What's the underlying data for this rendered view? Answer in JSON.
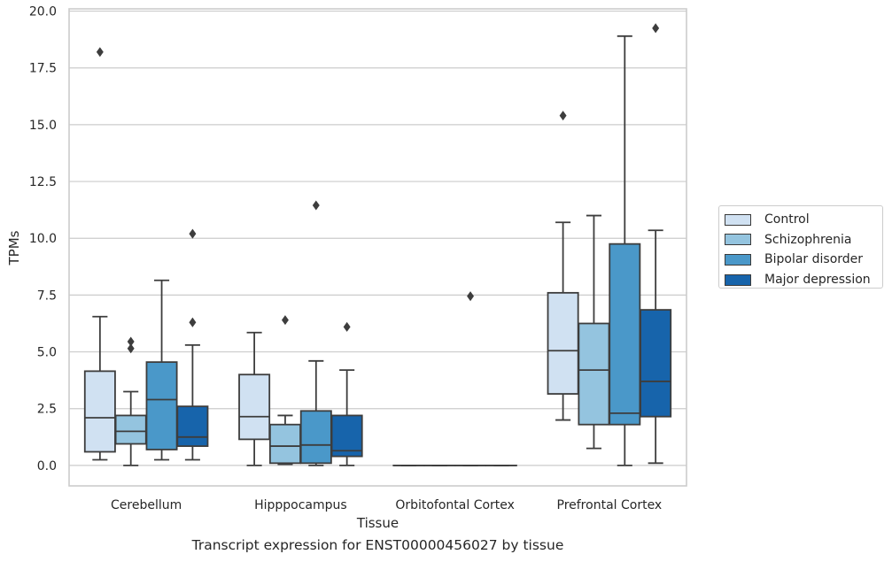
{
  "chart_data": {
    "type": "box",
    "xlabel": "Tissue",
    "ylabel": "TPMs",
    "caption": "Transcript expression for ENST00000456027 by tissue",
    "ylim": [
      -0.9,
      20.1
    ],
    "yticks": [
      "0.0",
      "2.5",
      "5.0",
      "7.5",
      "10.0",
      "12.5",
      "15.0",
      "17.5",
      "20.0"
    ],
    "grid": "horizontal",
    "legend_position": "right",
    "categories": [
      "Cerebellum",
      "Hipppocampus",
      "Orbitofontal Cortex",
      "Prefrontal Cortex"
    ],
    "series": [
      {
        "name": "Control",
        "color": "#d0e1f2",
        "boxes": [
          {
            "whislo": 0.25,
            "q1": 0.6,
            "med": 2.1,
            "q3": 4.15,
            "whishi": 6.55,
            "fliers": [
              18.2
            ]
          },
          {
            "whislo": 0.0,
            "q1": 1.15,
            "med": 2.15,
            "q3": 4.0,
            "whishi": 5.85,
            "fliers": []
          },
          {
            "whislo": 0.0,
            "q1": 0.0,
            "med": 0.0,
            "q3": 0.0,
            "whishi": 0.0,
            "fliers": []
          },
          {
            "whislo": 2.0,
            "q1": 3.15,
            "med": 5.05,
            "q3": 7.6,
            "whishi": 10.7,
            "fliers": [
              15.4
            ]
          }
        ]
      },
      {
        "name": "Schizophrenia",
        "color": "#94c4df",
        "boxes": [
          {
            "whislo": 0.0,
            "q1": 0.95,
            "med": 1.5,
            "q3": 2.2,
            "whishi": 3.25,
            "fliers": [
              5.15,
              5.45
            ]
          },
          {
            "whislo": 0.05,
            "q1": 0.1,
            "med": 0.85,
            "q3": 1.8,
            "whishi": 2.2,
            "fliers": [
              6.4
            ]
          },
          {
            "whislo": 0.0,
            "q1": 0.0,
            "med": 0.0,
            "q3": 0.0,
            "whishi": 0.0,
            "fliers": []
          },
          {
            "whislo": 0.75,
            "q1": 1.8,
            "med": 4.2,
            "q3": 6.25,
            "whishi": 11.0,
            "fliers": []
          }
        ]
      },
      {
        "name": "Bipolar disorder",
        "color": "#4a98c9",
        "boxes": [
          {
            "whislo": 0.25,
            "q1": 0.7,
            "med": 2.9,
            "q3": 4.55,
            "whishi": 8.15,
            "fliers": []
          },
          {
            "whislo": 0.0,
            "q1": 0.1,
            "med": 0.9,
            "q3": 2.4,
            "whishi": 4.6,
            "fliers": [
              11.45
            ]
          },
          {
            "whislo": 0.0,
            "q1": 0.0,
            "med": 0.0,
            "q3": 0.0,
            "whishi": 0.0,
            "fliers": [
              7.45
            ]
          },
          {
            "whislo": 0.0,
            "q1": 1.8,
            "med": 2.3,
            "q3": 9.75,
            "whishi": 18.9,
            "fliers": []
          }
        ]
      },
      {
        "name": "Major depression",
        "color": "#1764ab",
        "boxes": [
          {
            "whislo": 0.25,
            "q1": 0.85,
            "med": 1.25,
            "q3": 2.6,
            "whishi": 5.3,
            "fliers": [
              6.3,
              10.2
            ]
          },
          {
            "whislo": 0.0,
            "q1": 0.4,
            "med": 0.65,
            "q3": 2.2,
            "whishi": 4.2,
            "fliers": [
              6.1
            ]
          },
          {
            "whislo": 0.0,
            "q1": 0.0,
            "med": 0.0,
            "q3": 0.0,
            "whishi": 0.0,
            "fliers": []
          },
          {
            "whislo": 0.1,
            "q1": 2.15,
            "med": 3.7,
            "q3": 6.85,
            "whishi": 10.35,
            "fliers": [
              19.25
            ]
          }
        ]
      }
    ]
  }
}
